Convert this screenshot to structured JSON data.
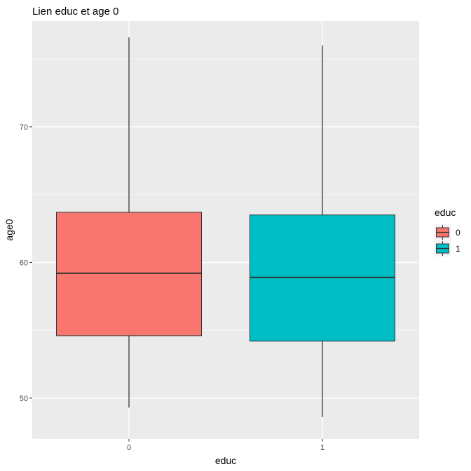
{
  "chart_data": {
    "type": "boxplot",
    "title": "Lien educ et age 0",
    "xlabel": "educ",
    "ylabel": "age0",
    "categories": [
      "0",
      "1"
    ],
    "ylim": [
      47.0,
      77.8
    ],
    "yticks": [
      50,
      60,
      70
    ],
    "grid": true,
    "boxes": [
      {
        "category": "0",
        "min": 49.3,
        "q1": 54.6,
        "median": 59.2,
        "q3": 63.7,
        "max": 76.6,
        "fill": "#F8766D"
      },
      {
        "category": "1",
        "min": 48.6,
        "q1": 54.2,
        "median": 58.9,
        "q3": 63.5,
        "max": 76.0,
        "fill": "#00BFC4"
      }
    ],
    "legend": {
      "title": "educ",
      "position": "right",
      "items": [
        {
          "label": "0",
          "color": "#F8766D"
        },
        {
          "label": "1",
          "color": "#00BFC4"
        }
      ]
    }
  }
}
